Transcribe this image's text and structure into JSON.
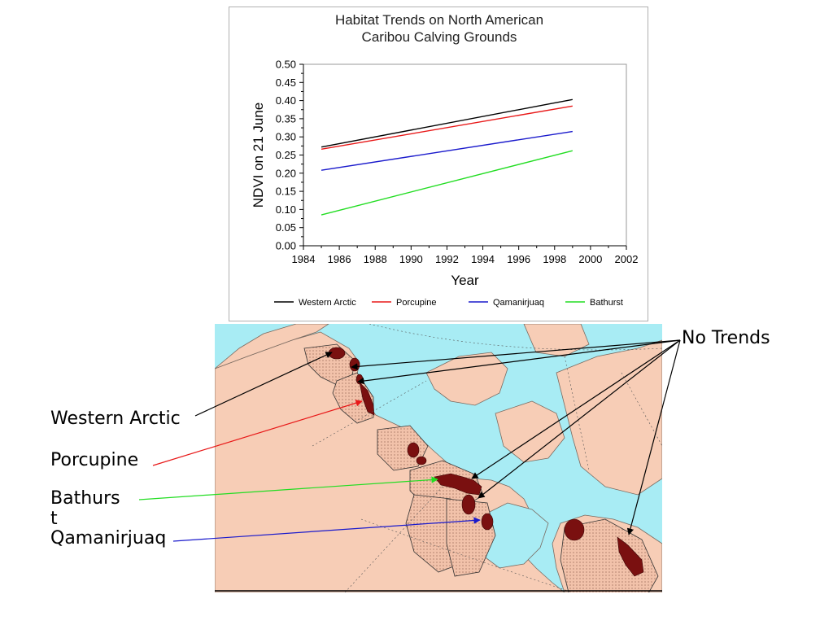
{
  "chart_data": {
    "type": "line",
    "title": "Habitat Trends on North American\nCaribou Calving Grounds",
    "xlabel": "Year",
    "ylabel": "NDVI on 21 June",
    "xlim": [
      1984,
      2002
    ],
    "ylim": [
      0,
      0.5
    ],
    "x_ticks": [
      "1984",
      "1986",
      "1988",
      "1990",
      "1992",
      "1994",
      "1996",
      "1998",
      "2000",
      "2002"
    ],
    "y_ticks": [
      "0.00",
      "0.05",
      "0.10",
      "0.15",
      "0.20",
      "0.25",
      "0.30",
      "0.35",
      "0.40",
      "0.45",
      "0.50"
    ],
    "grid": false,
    "legend_position": "bottom",
    "series": [
      {
        "name": "Western Arctic",
        "color": "#000000",
        "x": [
          1985,
          1999
        ],
        "y": [
          0.272,
          0.403
        ]
      },
      {
        "name": "Porcupine",
        "color": "#e81818",
        "x": [
          1985,
          1999
        ],
        "y": [
          0.266,
          0.385
        ]
      },
      {
        "name": "Qamanirjuaq",
        "color": "#1a1acc",
        "x": [
          1985,
          1999
        ],
        "y": [
          0.208,
          0.315
        ]
      },
      {
        "name": "Bathurst",
        "color": "#22dd22",
        "x": [
          1985,
          1999
        ],
        "y": [
          0.085,
          0.262
        ]
      }
    ]
  },
  "callouts": {
    "no_trends": "No Trends",
    "western_arctic": "Western Arctic",
    "porcupine": "Porcupine",
    "bathurst_1": "Bathurs",
    "bathurst_2": "t",
    "qamanirjuaq": "Qamanirjuaq"
  },
  "colors": {
    "ocean": "#a8ecf4",
    "land": "#f7cdb6",
    "calving_ground": "#7a1010",
    "range_fill": "#eeb9a2"
  }
}
